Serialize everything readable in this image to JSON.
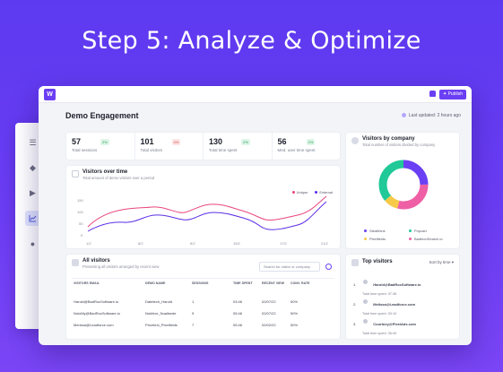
{
  "hero": {
    "title": "Step 5: Analyze & Optimize"
  },
  "topbar": {
    "logo": "W",
    "publish_label": "Publish"
  },
  "page": {
    "title": "Demo Engagement",
    "updated": "Last updated: 2 hours ago"
  },
  "stats": [
    {
      "value": "57",
      "label": "Total sessions",
      "badge": "2%",
      "trend": "up"
    },
    {
      "value": "101",
      "label": "Total visitors",
      "badge": "4%",
      "trend": "down"
    },
    {
      "value": "130",
      "label": "Total time spent",
      "badge": "2%",
      "trend": "up"
    },
    {
      "value": "56",
      "label": "Med. user time spent",
      "badge": "2%",
      "trend": "up"
    }
  ],
  "visitors_over_time": {
    "title": "Visitors over time",
    "subtitle": "Total amount of demo visitors over a period",
    "legend": [
      {
        "name": "Unique",
        "color": "#e8457f"
      },
      {
        "name": "External",
        "color": "#5b2ee6"
      }
    ],
    "x_ticks": [
      "1/2",
      "8/2",
      "8/2",
      "15/2",
      "17/2",
      "21/2"
    ],
    "y_ticks": [
      "150",
      "100",
      "50",
      "0"
    ]
  },
  "visitors_by_company": {
    "title": "Visitors by company",
    "subtitle": "Total number of visitors divided by company",
    "legend": [
      {
        "name": "Stealthink",
        "color": "#6b3ff3"
      },
      {
        "name": "Popcart",
        "color": "#20c997"
      },
      {
        "name": "Pixelfields",
        "color": "#f7c948"
      },
      {
        "name": "BadtechSearch.io",
        "color": "#ee5fa5"
      }
    ]
  },
  "all_visitors": {
    "title": "All visitors",
    "subtitle": "Presenting all visitors arranged by recent view",
    "search_placeholder": "Search for visitor or company",
    "columns": [
      "VISITORS EMAIL",
      "DEMO NAME",
      "SESSIONS",
      "TIME SPENT",
      "RECENT VIEW",
      "CONV. RATE"
    ],
    "rows": [
      [
        "Harold@BadRocSoftware.io",
        "Datetech_Harold",
        "1",
        "03:46",
        "02/07/22",
        "50%"
      ],
      [
        "NuloMy@BadRocSoftware.io",
        "Nukhive_Nuallsede",
        "9",
        "05:46",
        "02/07/22",
        "50%"
      ],
      [
        "Merissa@Leadforce.com",
        "Pricetext_Pixelfields",
        "7",
        "05:46",
        "02/02/22",
        "50%"
      ]
    ]
  },
  "top_visitors": {
    "title": "Top visitors",
    "sort_label": "Sort by time",
    "items": [
      {
        "rank": "1.",
        "email": "Harold@BadRocSoftware.io",
        "time": "Total time spent: 07:36"
      },
      {
        "rank": "2.",
        "email": "Melissa@Leadforce.com",
        "time": "Total time spent: 03:10"
      },
      {
        "rank": "3.",
        "email": "Courtney@PixelAds.com",
        "time": "Total time spent: 05:49"
      }
    ]
  }
}
